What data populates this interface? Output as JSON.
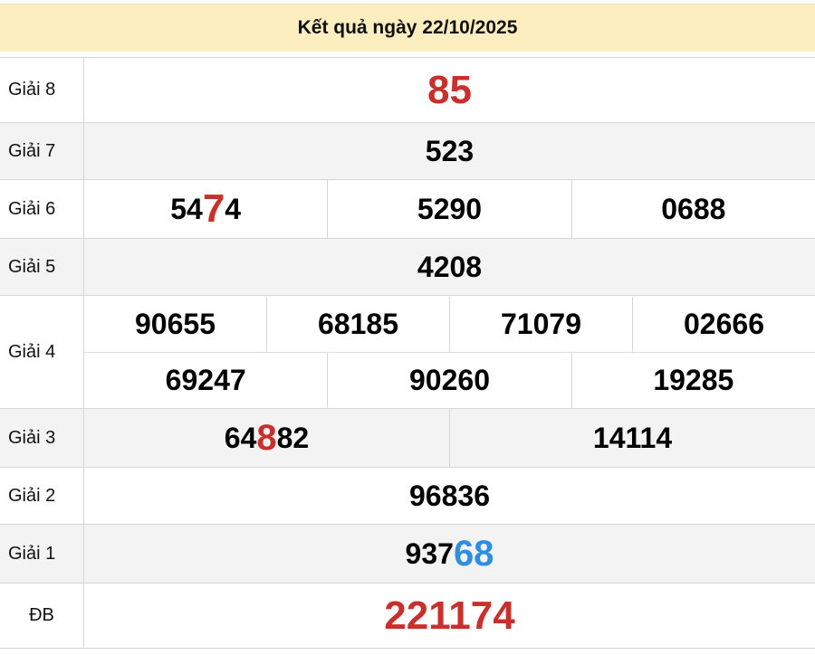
{
  "header": {
    "title": "Kết quả ngày 22/10/2025",
    "background": "#fdeec0"
  },
  "colors": {
    "red": "#c9302c",
    "blue": "#2e8fe0",
    "black": "#000000"
  },
  "prizes": [
    {
      "label": "Giải 8",
      "rows": [
        [
          [
            {
              "t": "85",
              "c": "red",
              "s": "big"
            }
          ]
        ]
      ]
    },
    {
      "label": "Giải 7",
      "rows": [
        [
          [
            {
              "t": "523"
            }
          ]
        ]
      ]
    },
    {
      "label": "Giải 6",
      "rows": [
        [
          [
            {
              "t": "54"
            },
            {
              "t": "7",
              "c": "red",
              "s": "big"
            },
            {
              "t": "4"
            }
          ],
          [
            {
              "t": "5290"
            }
          ],
          [
            {
              "t": "0688"
            }
          ]
        ]
      ]
    },
    {
      "label": "Giải 5",
      "rows": [
        [
          [
            {
              "t": "4208"
            }
          ]
        ]
      ]
    },
    {
      "label": "Giải 4",
      "rows": [
        [
          [
            {
              "t": "90655"
            }
          ],
          [
            {
              "t": "68185"
            }
          ],
          [
            {
              "t": "71079"
            }
          ],
          [
            {
              "t": "02666"
            }
          ]
        ],
        [
          [
            {
              "t": "69247"
            }
          ],
          [
            {
              "t": "90260"
            }
          ],
          [
            {
              "t": "19285"
            }
          ]
        ]
      ]
    },
    {
      "label": "Giải 3",
      "rows": [
        [
          [
            {
              "t": "64"
            },
            {
              "t": "8",
              "c": "red",
              "s": "mid"
            },
            {
              "t": "82"
            }
          ],
          [
            {
              "t": "14114"
            }
          ]
        ]
      ]
    },
    {
      "label": "Giải 2",
      "rows": [
        [
          [
            {
              "t": "96836"
            }
          ]
        ]
      ]
    },
    {
      "label": "Giải 1",
      "rows": [
        [
          [
            {
              "t": "937"
            },
            {
              "t": "68",
              "c": "blue",
              "s": "mid"
            }
          ]
        ]
      ]
    },
    {
      "label": "ĐB",
      "rows": [
        [
          [
            {
              "t": "221174",
              "c": "red",
              "s": "big"
            }
          ]
        ]
      ]
    }
  ]
}
